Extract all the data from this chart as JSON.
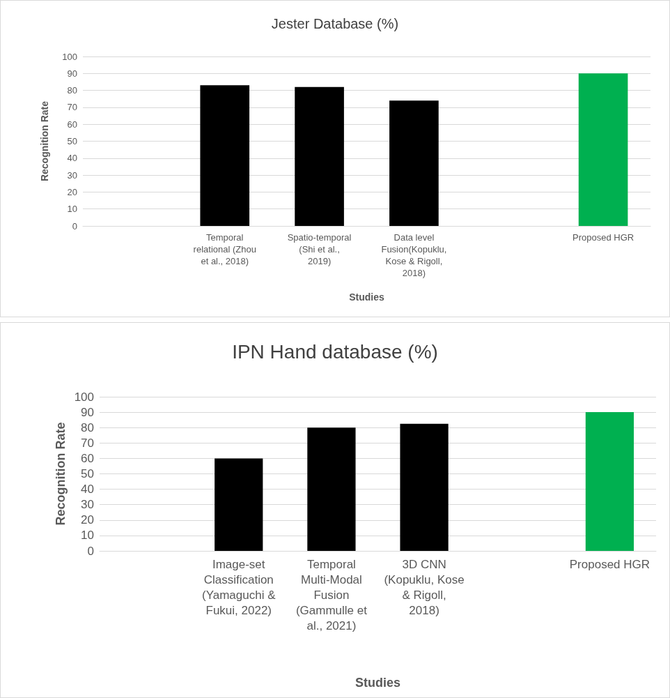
{
  "chart_data": [
    {
      "type": "bar",
      "title": "Jester Database (%)",
      "xlabel": "Studies",
      "ylabel": "Recognition Rate",
      "categories": [
        null,
        "Temporal relational (Zhou et al., 2018)",
        "Spatio-temporal (Shi et al., 2019)",
        "Data level Fusion(Kopuklu, Kose & Rigoll, 2018)",
        null,
        "Proposed HGR"
      ],
      "values": [
        null,
        83,
        82,
        74,
        null,
        90
      ],
      "colors": [
        "#000000",
        "#000000",
        "#000000",
        "#000000",
        "#000000",
        "#00b050"
      ],
      "ylim": [
        0,
        100
      ],
      "yticks": [
        0,
        10,
        20,
        30,
        40,
        50,
        60,
        70,
        80,
        90,
        100
      ],
      "grid": "y"
    },
    {
      "type": "bar",
      "title": "IPN Hand database (%)",
      "xlabel": "Studies",
      "ylabel": "Recognition Rate",
      "categories": [
        null,
        "Image-set Classification (Yamaguchi & Fukui, 2022)",
        "Temporal Multi-Modal Fusion (Gammulle et al., 2021)",
        "3D CNN (Kopuklu, Kose & Rigoll, 2018)",
        null,
        "Proposed HGR"
      ],
      "values": [
        null,
        60,
        80,
        82.5,
        null,
        90
      ],
      "colors": [
        "#000000",
        "#000000",
        "#000000",
        "#000000",
        "#000000",
        "#00b050"
      ],
      "ylim": [
        0,
        100
      ],
      "yticks": [
        0,
        10,
        20,
        30,
        40,
        50,
        60,
        70,
        80,
        90,
        100
      ],
      "grid": "y"
    }
  ]
}
